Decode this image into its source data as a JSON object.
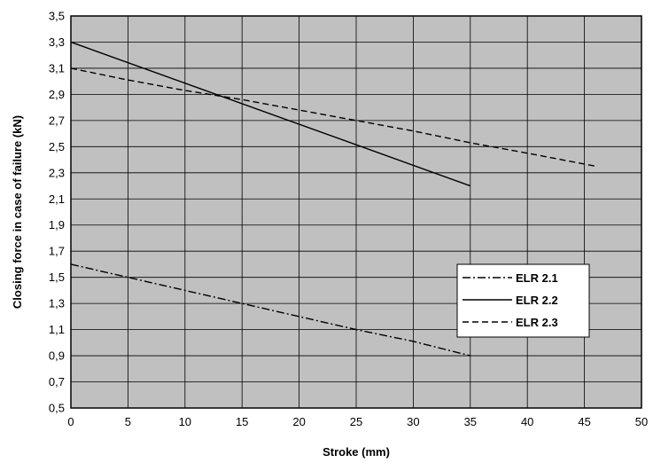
{
  "chart_data": {
    "type": "line",
    "title": "",
    "xlabel": "Stroke (mm)",
    "ylabel": "Closing force in case of failure (kN)",
    "xlim": [
      0,
      50
    ],
    "ylim": [
      0.5,
      3.5
    ],
    "x_ticks": [
      "0",
      "5",
      "10",
      "15",
      "20",
      "25",
      "30",
      "35",
      "40",
      "45",
      "50"
    ],
    "y_ticks": [
      "0,5",
      "0,7",
      "0,9",
      "1,1",
      "1,3",
      "1,5",
      "1,7",
      "1,9",
      "2,1",
      "2,3",
      "2,5",
      "2,7",
      "2,9",
      "3,1",
      "3,3",
      "3,5"
    ],
    "grid": true,
    "plot_background": "#c0c0c0",
    "legend_position": "lower-right",
    "series": [
      {
        "name": "ELR 2.1",
        "style": "dash-dot",
        "x": [
          0,
          5,
          10,
          15,
          20,
          25,
          30,
          35
        ],
        "y": [
          1.6,
          1.5,
          1.4,
          1.3,
          1.2,
          1.1,
          1.01,
          0.9
        ]
      },
      {
        "name": "ELR 2.2",
        "style": "solid",
        "x": [
          0,
          35
        ],
        "y": [
          3.3,
          2.2
        ]
      },
      {
        "name": "ELR 2.3",
        "style": "dashed",
        "x": [
          0,
          5,
          10,
          15,
          20,
          25,
          30,
          35,
          40,
          46
        ],
        "y": [
          3.1,
          3.01,
          2.93,
          2.86,
          2.78,
          2.7,
          2.62,
          2.53,
          2.45,
          2.35
        ]
      }
    ]
  }
}
